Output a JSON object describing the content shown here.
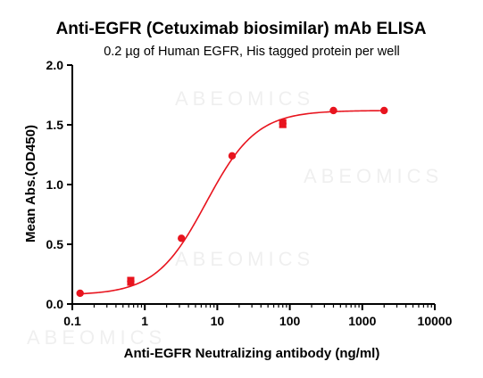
{
  "chart_data": {
    "type": "scatter",
    "title": "Anti-EGFR (Cetuximab biosimilar) mAb ELISA",
    "subtitle": "0.2 µg of Human EGFR, His tagged protein per well",
    "xlabel": "Anti-EGFR Neutralizing antibody (ng/ml)",
    "ylabel": "Mean Abs.(OD450)",
    "xscale": "log",
    "xlim": [
      0.1,
      10000
    ],
    "ylim": [
      0.0,
      2.0
    ],
    "x_ticks": [
      "0.1",
      "1",
      "10",
      "100",
      "1000",
      "10000"
    ],
    "y_ticks": [
      "0.0",
      "0.5",
      "1.0",
      "1.5",
      "2.0"
    ],
    "grid": false,
    "legend": "none",
    "watermark": "ABEOMICS",
    "series": [
      {
        "color": "#e8141e",
        "x": [
          0.128,
          0.64,
          3.2,
          16,
          80,
          400,
          2000
        ],
        "y": [
          0.09,
          0.19,
          0.55,
          1.24,
          1.51,
          1.62,
          1.62
        ],
        "error": [
          0.0,
          0.03,
          0.0,
          0.0,
          0.03,
          0.0,
          0.0
        ],
        "fit": {
          "bottom": 0.075,
          "top": 1.62,
          "ec50": 7.0,
          "hill": 1.25
        }
      }
    ]
  }
}
